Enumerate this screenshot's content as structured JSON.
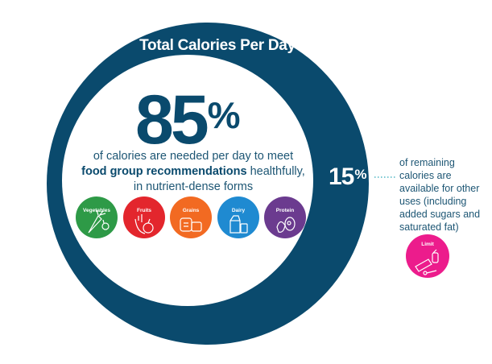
{
  "title": "Total Calories Per Day",
  "main_percent": "85",
  "main_percent_sign": "%",
  "description": {
    "line1": "of calories are needed per day to meet",
    "line2_bold": "food group recommendations",
    "line2_rest": " healthfully,",
    "line3": "in nutrient-dense forms"
  },
  "remaining_percent": "15",
  "remaining_percent_sign": "%",
  "remaining_text": "of remaining calories are available for other uses (including added sugars and saturated fat)",
  "food_groups": [
    {
      "label": "Vegetables",
      "color": "#2e9a47",
      "icon": "vegetables-icon"
    },
    {
      "label": "Fruits",
      "color": "#e3262d",
      "icon": "fruits-icon"
    },
    {
      "label": "Grains",
      "color": "#f26a22",
      "icon": "grains-icon"
    },
    {
      "label": "Dairy",
      "color": "#1f8ad1",
      "icon": "dairy-icon"
    },
    {
      "label": "Protein",
      "color": "#6b3b8f",
      "icon": "protein-icon"
    }
  ],
  "limit": {
    "label": "Limit",
    "color": "#ec1c8c",
    "icon": "limit-icon"
  },
  "colors": {
    "ring": "#0a4a6d",
    "text": "#1d5674"
  }
}
